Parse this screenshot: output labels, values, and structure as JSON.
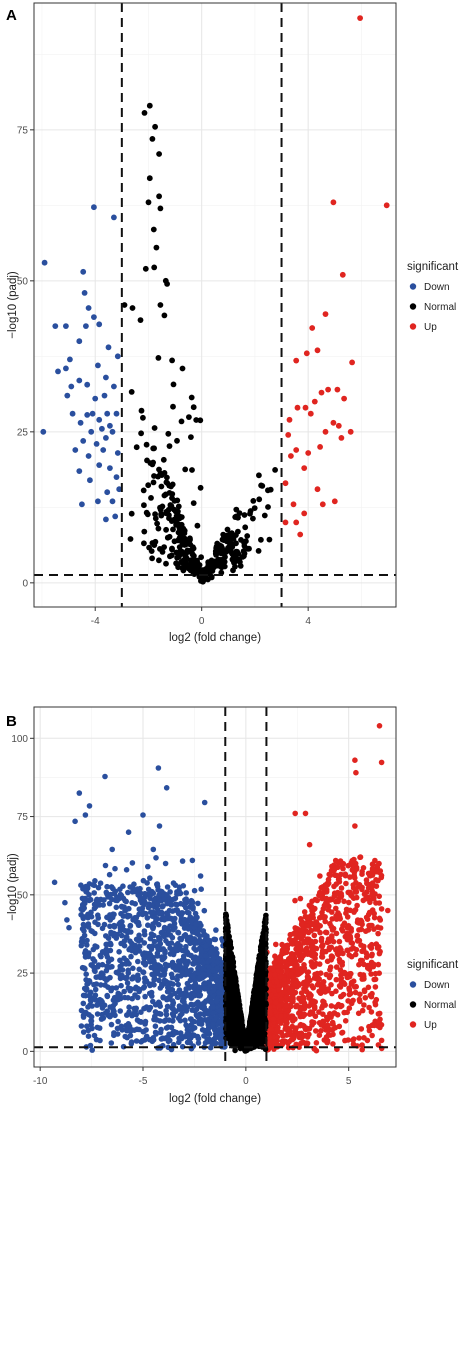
{
  "chart_data": [
    {
      "panel": "A",
      "type": "scatter",
      "title": "",
      "xlabel": "log2 (fold change)",
      "ylabel": "−log10 (padj)",
      "xlim": [
        -6.3,
        7.3
      ],
      "ylim": [
        -4,
        96
      ],
      "xticks": [
        -4,
        0,
        4
      ],
      "yticks": [
        0,
        25,
        50,
        75
      ],
      "xtick_labels": [
        "-4",
        "0",
        "4"
      ],
      "ytick_labels": [
        "0",
        "25",
        "50",
        "75"
      ],
      "thresholds": {
        "x": [
          -3,
          3
        ],
        "y": 1.3
      },
      "grid": true,
      "legend": {
        "title": "significant",
        "position": "right",
        "entries": [
          "Down",
          "Normal",
          "Up"
        ]
      },
      "series": [
        {
          "name": "Down",
          "color": "#2a4f9e",
          "points": [
            [
              -5.9,
              53
            ],
            [
              -5.5,
              42.5
            ],
            [
              -5.1,
              42.5
            ],
            [
              -5.4,
              35
            ],
            [
              -5.05,
              31
            ],
            [
              -4.4,
              48
            ],
            [
              -4.45,
              51.5
            ],
            [
              -4.05,
              62.2
            ],
            [
              -4.25,
              45.5
            ],
            [
              -4.05,
              44
            ],
            [
              -3.85,
              42.8
            ],
            [
              -4.35,
              42.5
            ],
            [
              -4.6,
              40
            ],
            [
              -4.95,
              37
            ],
            [
              -5.1,
              35.5
            ],
            [
              -4.9,
              32.5
            ],
            [
              -4.6,
              33.5
            ],
            [
              -4.3,
              32.8
            ],
            [
              -3.9,
              36
            ],
            [
              -3.6,
              34
            ],
            [
              -3.3,
              32.5
            ],
            [
              -3.15,
              37.5
            ],
            [
              -3.3,
              60.5
            ],
            [
              -3.5,
              39
            ],
            [
              -4.1,
              28
            ],
            [
              -3.85,
              27
            ],
            [
              -3.55,
              28
            ],
            [
              -3.75,
              25.5
            ],
            [
              -4.15,
              25
            ],
            [
              -4.45,
              23.5
            ],
            [
              -4.75,
              22
            ],
            [
              -5.95,
              25
            ],
            [
              -4.85,
              28
            ],
            [
              -4.55,
              26.5
            ],
            [
              -4.3,
              27.8
            ],
            [
              -3.95,
              23
            ],
            [
              -3.7,
              22
            ],
            [
              -3.45,
              19
            ],
            [
              -3.2,
              17.5
            ],
            [
              -4.2,
              17
            ],
            [
              -3.55,
              15
            ],
            [
              -3.9,
              13.5
            ],
            [
              -4.5,
              13
            ],
            [
              -3.25,
              11
            ],
            [
              -3.6,
              10.5
            ],
            [
              -3.35,
              25
            ],
            [
              -3.15,
              21.5
            ],
            [
              -3.45,
              26
            ],
            [
              -4.0,
              30.5
            ],
            [
              -3.65,
              31
            ],
            [
              -3.35,
              13.5
            ],
            [
              -3.85,
              19.5
            ],
            [
              -4.6,
              18.5
            ],
            [
              -3.2,
              28
            ],
            [
              -4.25,
              21
            ],
            [
              -3.6,
              24
            ],
            [
              -3.1,
              15.5
            ]
          ]
        },
        {
          "name": "Up",
          "color": "#e02520",
          "points": [
            [
              5.95,
              93.5
            ],
            [
              6.95,
              62.5
            ],
            [
              4.95,
              63
            ],
            [
              5.3,
              51
            ],
            [
              4.65,
              44.5
            ],
            [
              4.15,
              42.2
            ],
            [
              4.35,
              38.5
            ],
            [
              3.95,
              38
            ],
            [
              3.55,
              36.8
            ],
            [
              5.65,
              36.5
            ],
            [
              4.75,
              32
            ],
            [
              5.1,
              32
            ],
            [
              4.5,
              31.5
            ],
            [
              4.25,
              30
            ],
            [
              3.9,
              29
            ],
            [
              3.6,
              29
            ],
            [
              5.35,
              30.5
            ],
            [
              5.6,
              25
            ],
            [
              5.25,
              24
            ],
            [
              4.95,
              26.5
            ],
            [
              4.65,
              25
            ],
            [
              4.45,
              22.5
            ],
            [
              4.0,
              21.5
            ],
            [
              3.55,
              22
            ],
            [
              3.85,
              19
            ],
            [
              3.35,
              21
            ],
            [
              3.15,
              16.5
            ],
            [
              3.45,
              13
            ],
            [
              3.85,
              11.5
            ],
            [
              3.55,
              10
            ],
            [
              4.35,
              15.5
            ],
            [
              4.55,
              13
            ],
            [
              5.0,
              13.5
            ],
            [
              5.15,
              26
            ],
            [
              4.1,
              28
            ],
            [
              3.3,
              27
            ],
            [
              3.15,
              10
            ],
            [
              3.7,
              8
            ],
            [
              3.25,
              24.5
            ]
          ]
        },
        {
          "name": "Normal",
          "color": "#000000",
          "points": []
        }
      ]
    },
    {
      "panel": "B",
      "type": "scatter",
      "title": "",
      "xlabel": "log2 (fold change)",
      "ylabel": "−log10 (padj)",
      "xlim": [
        -10.3,
        7.3
      ],
      "ylim": [
        -5,
        110
      ],
      "xticks": [
        -10,
        -5,
        0,
        5
      ],
      "yticks": [
        0,
        25,
        50,
        75,
        100
      ],
      "xtick_labels": [
        "-10",
        "-5",
        "0",
        "5"
      ],
      "ytick_labels": [
        "0",
        "25",
        "50",
        "75",
        "100"
      ],
      "thresholds": {
        "x": [
          -1,
          1
        ],
        "y": 1.3
      },
      "grid": true,
      "legend": {
        "title": "significant",
        "position": "right",
        "entries": [
          "Down",
          "Normal",
          "Up"
        ]
      },
      "series": [
        {
          "name": "Down",
          "color": "#2a4f9e",
          "points": [
            [
              -4.25,
              90.5
            ],
            [
              -6.85,
              87.8
            ],
            [
              -8.1,
              82.5
            ],
            [
              -7.6,
              78.4
            ],
            [
              -7.8,
              75.5
            ],
            [
              -3.85,
              84.2
            ],
            [
              -5.0,
              75.5
            ],
            [
              -2.0,
              79.5
            ],
            [
              -8.3,
              73.5
            ],
            [
              -5.7,
              70
            ],
            [
              -4.2,
              72
            ],
            [
              -4.5,
              64.5
            ],
            [
              -6.5,
              64.5
            ],
            [
              -9.3,
              54
            ],
            [
              -8.8,
              47.5
            ],
            [
              -8.7,
              42
            ],
            [
              -7.5,
              43
            ],
            [
              -8.6,
              39.5
            ],
            [
              -6.7,
              20.5
            ],
            [
              -7.2,
              27
            ],
            [
              -4.9,
              17.5
            ],
            [
              -7.9,
              40.5
            ],
            [
              -5.8,
              58
            ],
            [
              -3.9,
              60
            ],
            [
              -2.6,
              61
            ],
            [
              -2.2,
              56
            ]
          ]
        },
        {
          "name": "Up",
          "color": "#e02520",
          "points": [
            [
              6.5,
              104
            ],
            [
              6.6,
              92.3
            ],
            [
              5.3,
              93
            ],
            [
              5.35,
              89
            ],
            [
              2.4,
              76
            ],
            [
              2.9,
              76
            ],
            [
              5.3,
              72
            ],
            [
              5.55,
              62
            ],
            [
              4.6,
              60.8
            ],
            [
              3.1,
              66
            ],
            [
              6.2,
              53
            ],
            [
              6.6,
              45.5
            ],
            [
              6.5,
              42.5
            ],
            [
              6.9,
              45
            ],
            [
              6.4,
              33
            ],
            [
              5.1,
              24.8
            ],
            [
              6.0,
              27
            ],
            [
              5.3,
              45
            ],
            [
              4.3,
              58
            ],
            [
              3.6,
              56
            ]
          ]
        },
        {
          "name": "Normal",
          "color": "#000000",
          "points": []
        }
      ]
    }
  ]
}
